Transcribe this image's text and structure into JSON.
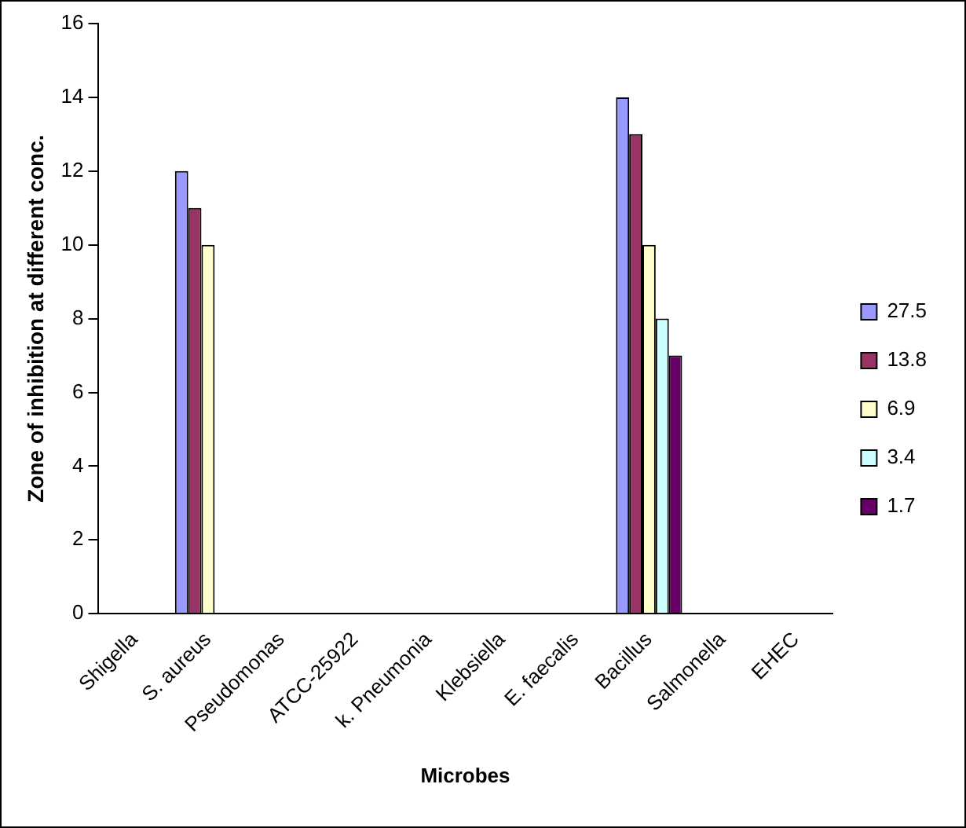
{
  "chart_data": {
    "type": "bar",
    "xlabel": "Microbes",
    "ylabel": "Zone of inhibition at different conc.",
    "categories": [
      "Shigella",
      "S. aureus",
      "Pseudomonas",
      "ATCC-25922",
      "k. Pneumonia",
      "Klebsiella",
      "E. faecalis",
      "Bacillus",
      "Salmonella",
      "EHEC"
    ],
    "series": [
      {
        "name": "27.5",
        "color": "#9999ff",
        "values": [
          null,
          12,
          null,
          null,
          null,
          null,
          null,
          14,
          null,
          null
        ]
      },
      {
        "name": "13.8",
        "color": "#993366",
        "values": [
          null,
          11,
          null,
          null,
          null,
          null,
          null,
          13,
          null,
          null
        ]
      },
      {
        "name": "6.9",
        "color": "#ffffcc",
        "values": [
          null,
          10,
          null,
          null,
          null,
          null,
          null,
          10,
          null,
          null
        ]
      },
      {
        "name": "3.4",
        "color": "#ccffff",
        "values": [
          null,
          null,
          null,
          null,
          null,
          null,
          null,
          8,
          null,
          null
        ]
      },
      {
        "name": "1.7",
        "color": "#660066",
        "values": [
          null,
          null,
          null,
          null,
          null,
          null,
          null,
          7,
          null,
          null
        ]
      }
    ],
    "ylim": [
      0,
      16
    ],
    "yticks": [
      0,
      2,
      4,
      6,
      8,
      10,
      12,
      14,
      16
    ],
    "grid": false,
    "legend": "right"
  }
}
